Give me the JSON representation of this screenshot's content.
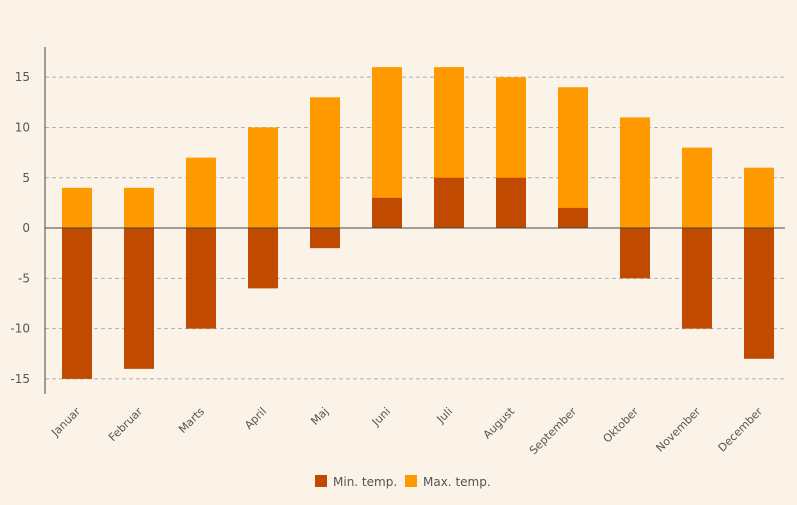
{
  "colors": {
    "background": "#fbf3e8",
    "min_series": "#c04a00",
    "max_series": "#ff9900",
    "grid": "#b0b0b0",
    "axis": "#444444",
    "text": "#555555"
  },
  "chart_data": {
    "type": "bar",
    "stacked_overlay": true,
    "title": "",
    "xlabel": "",
    "ylabel": "",
    "ylim": [
      -16.5,
      18
    ],
    "yticks": [
      -15,
      -10,
      -5,
      0,
      5,
      10,
      15
    ],
    "grid": true,
    "legend_position": "bottom-center",
    "categories": [
      "Januar",
      "Februar",
      "Marts",
      "April",
      "Maj",
      "Juni",
      "Juli",
      "August",
      "September",
      "Oktober",
      "November",
      "December"
    ],
    "series": [
      {
        "name": "Min. temp.",
        "values": [
          -15,
          -14,
          -10,
          -6,
          -2,
          3,
          5,
          5,
          2,
          -5,
          -10,
          -13
        ]
      },
      {
        "name": "Max. temp.",
        "values": [
          4,
          4,
          7,
          10,
          13,
          16,
          16,
          15,
          14,
          11,
          8,
          6
        ]
      }
    ]
  }
}
